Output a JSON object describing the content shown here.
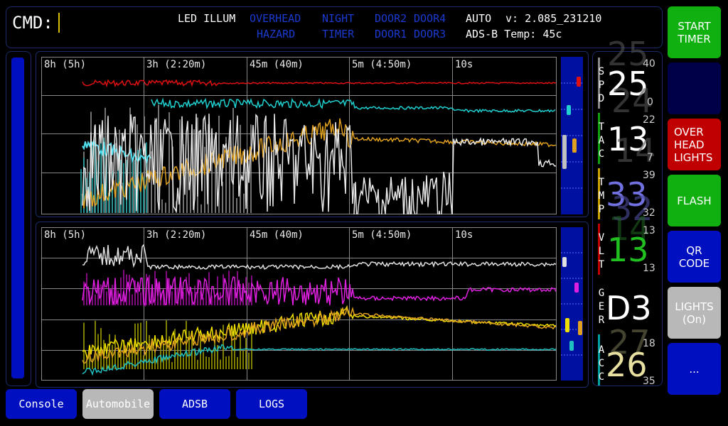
{
  "header": {
    "cmd_label": "CMD:",
    "led_illum": "LED ILLUM",
    "overhead": "OVERHEAD",
    "hazard": "HAZARD",
    "night": "NIGHT",
    "timer": "TIMER",
    "door2": "DOOR2",
    "door4": "DOOR4",
    "door1": "DOOR1",
    "door3": "DOOR3",
    "auto": "AUTO",
    "version": "v: 2.085_231210",
    "adsb_temp": "ADS-B Temp: 45c"
  },
  "colors": {
    "active_text": "#ffffff",
    "inactive_text": "#1a3ad0",
    "green": "#10b010",
    "red": "#c00000",
    "blue": "#0010c0",
    "gray": "#b8b8b8",
    "navy": "#000060"
  },
  "side_buttons": {
    "start_timer": "START\nTIMER",
    "blank": "",
    "overhead_lights": "OVER\nHEAD\nLIGHTS",
    "flash": "FLASH",
    "qr_code": "QR\nCODE",
    "lights": "LIGHTS\n(On)",
    "more": "..."
  },
  "tabs": {
    "console": "Console",
    "automobile": "Automobile",
    "adsb": "ADSB",
    "logs": "LOGS"
  },
  "graph_ticks": [
    "8h (5h)",
    "3h (2:20m)",
    "45m (40m)",
    "5m (4:50m)",
    "10s"
  ],
  "gauges": {
    "spd": {
      "label": [
        "S",
        "P",
        "D"
      ],
      "value": "25",
      "max": "40",
      "min": "0",
      "prev": "24"
    },
    "tac": {
      "label": [
        "T",
        "A",
        "C"
      ],
      "value": "13",
      "max": "22",
      "min": "7",
      "prev": "14"
    },
    "tmp": {
      "label": [
        "T",
        "M",
        "P"
      ],
      "value": "33",
      "max": "39",
      "min": "32",
      "prev": "32"
    },
    "vlt": {
      "label": [
        "V",
        "L",
        "T"
      ],
      "value": "13",
      "max": "13",
      "min": "13",
      "prev": "14"
    },
    "ger": {
      "label": [
        "G",
        "E",
        "R"
      ],
      "value": "D3"
    },
    "acc": {
      "label": [
        "A",
        "C",
        "C"
      ],
      "value": "26",
      "max": "18",
      "min": "35",
      "prev": "27"
    }
  }
}
